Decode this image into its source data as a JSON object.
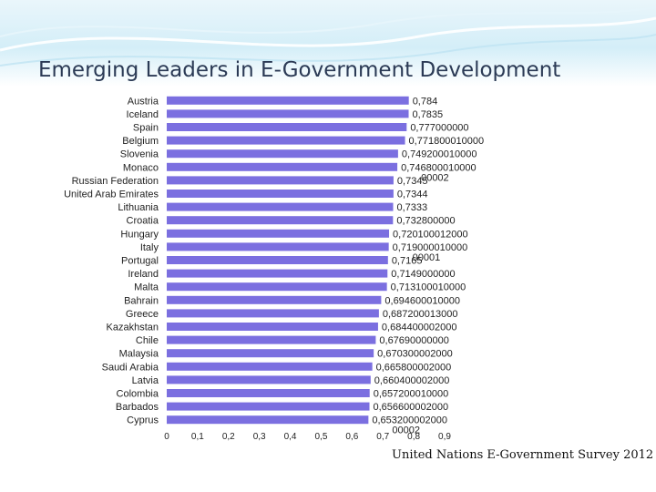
{
  "page": {
    "title": "Emerging Leaders in E-Government Development",
    "source": "United Nations E-Government Survey 2012"
  },
  "chart_data": {
    "type": "bar",
    "orientation": "horizontal",
    "title": "",
    "xlabel": "",
    "ylabel": "",
    "xlim": [
      0,
      0.9
    ],
    "x_ticks": [
      "0",
      "0,1",
      "0,2",
      "0,3",
      "0,4",
      "0,5",
      "0,6",
      "0,7",
      "0,8",
      "0,9"
    ],
    "bar_color": "#7b6fe0",
    "grid": false,
    "legend": "none",
    "categories": [
      "Austria",
      "Iceland",
      "Spain",
      "Belgium",
      "Slovenia",
      "Monaco",
      "Russian Federation",
      "United Arab Emirates",
      "Lithuania",
      "Croatia",
      "Hungary",
      "Italy",
      "Portugal",
      "Ireland",
      "Malta",
      "Bahrain",
      "Greece",
      "Kazakhstan",
      "Chile",
      "Malaysia",
      "Saudi Arabia",
      "Latvia",
      "Colombia",
      "Barbados",
      "Cyprus"
    ],
    "values": [
      0.784,
      0.7835,
      0.777,
      0.7718,
      0.7492,
      0.7468,
      0.7345,
      0.7344,
      0.7333,
      0.7328,
      0.7201,
      0.719,
      0.7165,
      0.7149,
      0.7131,
      0.6946,
      0.6872,
      0.6844,
      0.6769,
      0.6703,
      0.6658,
      0.6604,
      0.6572,
      0.6566,
      0.6532
    ],
    "data_labels": [
      "0,784",
      "0,7835",
      "0,777000000",
      "0,771800010000",
      "0,749200010000",
      "0,746800010000\n00002",
      "0,7345",
      "0,7344",
      "0,7333",
      "0,732800000",
      "0,720100012000",
      "0,719000010000\n00001",
      "0,7165",
      "0,7149000000",
      "0,713100010000",
      "0,694600010000",
      "0,687200013000",
      "0,684400002000",
      "0,67690000000",
      "0,670300002000",
      "0,665800002000",
      "0,660400002000",
      "0,657200010000",
      "0,656600002000",
      "0,653200002000\n00002"
    ]
  }
}
